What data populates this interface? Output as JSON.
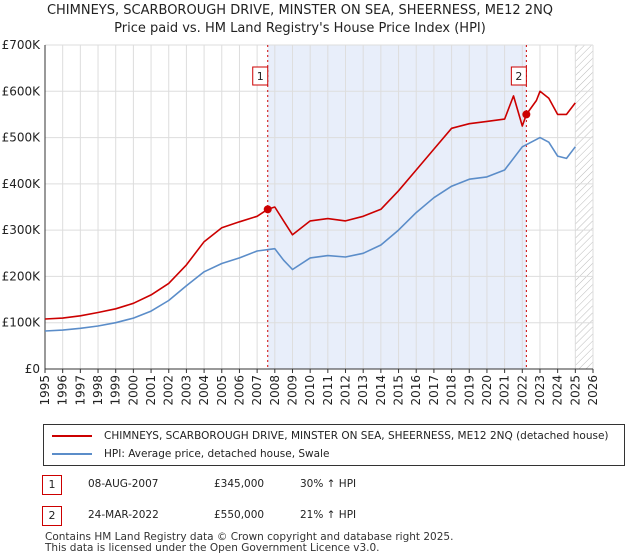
{
  "title_line1": "CHIMNEYS, SCARBOROUGH DRIVE, MINSTER ON SEA, SHEERNESS, ME12 2NQ",
  "title_line2": "Price paid vs. HM Land Registry's House Price Index (HPI)",
  "colors": {
    "red": "#cc0000",
    "blue": "#5b8dc9",
    "shade": "#e8eefa",
    "grid": "#dddddd"
  },
  "chart_data": {
    "type": "line",
    "title": "Price paid vs. HM Land Registry's House Price Index (HPI)",
    "xlabel": "",
    "ylabel": "",
    "xlim": [
      1995,
      2026
    ],
    "ylim": [
      0,
      700000
    ],
    "yticks": [
      {
        "value": 0,
        "label": "£0"
      },
      {
        "value": 100000,
        "label": "£100K"
      },
      {
        "value": 200000,
        "label": "£200K"
      },
      {
        "value": 300000,
        "label": "£300K"
      },
      {
        "value": 400000,
        "label": "£400K"
      },
      {
        "value": 500000,
        "label": "£500K"
      },
      {
        "value": 600000,
        "label": "£600K"
      },
      {
        "value": 700000,
        "label": "£700K"
      }
    ],
    "xticks": [
      "1995",
      "1996",
      "1997",
      "1998",
      "1999",
      "2000",
      "2001",
      "2002",
      "2003",
      "2004",
      "2005",
      "2006",
      "2007",
      "2008",
      "2009",
      "2010",
      "2011",
      "2012",
      "2013",
      "2014",
      "2015",
      "2016",
      "2017",
      "2018",
      "2019",
      "2020",
      "2021",
      "2022",
      "2023",
      "2024",
      "2025",
      "2026"
    ],
    "shaded_period": [
      2007.6,
      2022.23
    ],
    "future_hatch_start": 2025.0,
    "series": [
      {
        "name": "CHIMNEYS, SCARBOROUGH DRIVE, MINSTER ON SEA, SHEERNESS, ME12 2NQ (detached house)",
        "color": "#cc0000",
        "x": [
          1995,
          1996,
          1997,
          1998,
          1999,
          2000,
          2001,
          2002,
          2003,
          2004,
          2005,
          2006,
          2007,
          2007.6,
          2008,
          2008.5,
          2009,
          2010,
          2011,
          2012,
          2013,
          2014,
          2015,
          2016,
          2017,
          2018,
          2019,
          2020,
          2021,
          2021.5,
          2022,
          2022.23,
          2022.8,
          2023,
          2023.5,
          2024,
          2024.5,
          2025
        ],
        "y": [
          108000,
          110000,
          115000,
          122000,
          130000,
          142000,
          160000,
          185000,
          225000,
          275000,
          305000,
          318000,
          330000,
          345000,
          350000,
          320000,
          290000,
          320000,
          325000,
          320000,
          330000,
          345000,
          385000,
          430000,
          475000,
          520000,
          530000,
          535000,
          540000,
          590000,
          525000,
          550000,
          580000,
          600000,
          585000,
          550000,
          550000,
          575000
        ]
      },
      {
        "name": "HPI: Average price, detached house, Swale",
        "color": "#5b8dc9",
        "x": [
          1995,
          1996,
          1997,
          1998,
          1999,
          2000,
          2001,
          2002,
          2003,
          2004,
          2005,
          2006,
          2007,
          2008,
          2008.5,
          2009,
          2010,
          2011,
          2012,
          2013,
          2014,
          2015,
          2016,
          2017,
          2018,
          2019,
          2020,
          2021,
          2022,
          2023,
          2023.5,
          2024,
          2024.5,
          2025
        ],
        "y": [
          82000,
          84000,
          88000,
          93000,
          100000,
          110000,
          125000,
          148000,
          180000,
          210000,
          228000,
          240000,
          255000,
          260000,
          235000,
          215000,
          240000,
          245000,
          242000,
          250000,
          268000,
          300000,
          338000,
          370000,
          395000,
          410000,
          415000,
          430000,
          480000,
          500000,
          490000,
          460000,
          455000,
          480000
        ]
      }
    ],
    "annotations": [
      {
        "label": "1",
        "x": 2007.6,
        "y": 345000
      },
      {
        "label": "2",
        "x": 2022.23,
        "y": 550000
      }
    ]
  },
  "legend": {
    "red_label": "CHIMNEYS, SCARBOROUGH DRIVE, MINSTER ON SEA, SHEERNESS, ME12 2NQ (detached house)",
    "blue_label": "HPI: Average price, detached house, Swale"
  },
  "sales": [
    {
      "num": "1",
      "date": "08-AUG-2007",
      "price": "£345,000",
      "hpi": "30% ↑ HPI"
    },
    {
      "num": "2",
      "date": "24-MAR-2022",
      "price": "£550,000",
      "hpi": "21% ↑ HPI"
    }
  ],
  "footer_line1": "Contains HM Land Registry data © Crown copyright and database right 2025.",
  "footer_line2": "This data is licensed under the Open Government Licence v3.0."
}
